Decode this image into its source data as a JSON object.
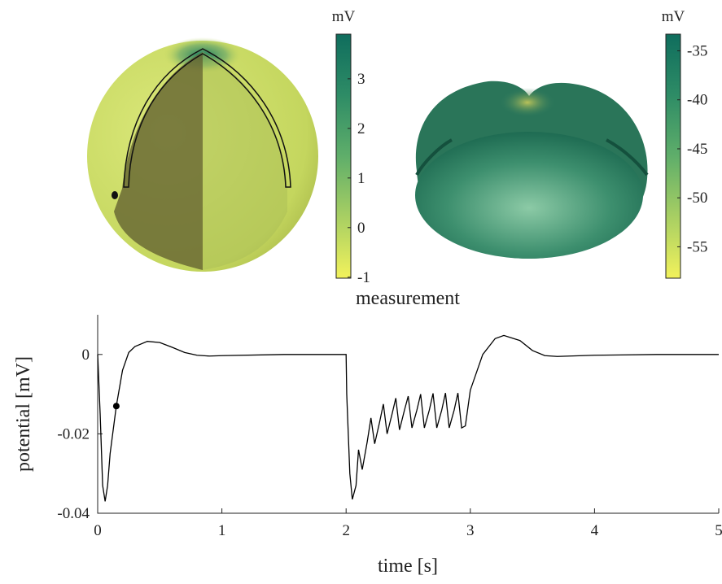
{
  "chart_data": [
    {
      "type": "colorbar",
      "unit": "mV",
      "ylim": [
        -1.02,
        3.9
      ],
      "yticks": [
        -1,
        0,
        1,
        2,
        3
      ],
      "colors": [
        "#f2f25c",
        "#a8cf63",
        "#5fae6a",
        "#2e8c66",
        "#0f6d5d"
      ]
    },
    {
      "type": "colorbar",
      "unit": "mV",
      "ylim": [
        -58.2,
        -33.3
      ],
      "yticks": [
        -55,
        -50,
        -45,
        -40,
        -35
      ],
      "colors": [
        "#f2f25c",
        "#a8cf63",
        "#5fae6a",
        "#2e8c66",
        "#0f6d5d"
      ]
    },
    {
      "type": "line",
      "title": "measurement",
      "x_label": "time [s]",
      "y_label": "potential [mV]",
      "xlim": [
        0,
        5
      ],
      "ylim": [
        -0.04,
        0.01
      ],
      "xticks": [
        0,
        1,
        2,
        3,
        4,
        5
      ],
      "yticks": [
        -0.04,
        -0.02,
        0
      ],
      "x": [
        0,
        0.02,
        0.04,
        0.06,
        0.08,
        0.1,
        0.15,
        0.2,
        0.25,
        0.3,
        0.4,
        0.5,
        0.6,
        0.7,
        0.8,
        0.9,
        1.0,
        1.5,
        2.0,
        2.005,
        2.03,
        2.05,
        2.08,
        2.1,
        2.13,
        2.17,
        2.2,
        2.23,
        2.27,
        2.3,
        2.33,
        2.37,
        2.4,
        2.43,
        2.47,
        2.5,
        2.53,
        2.57,
        2.6,
        2.63,
        2.67,
        2.7,
        2.73,
        2.77,
        2.8,
        2.83,
        2.87,
        2.9,
        2.93,
        2.96,
        3.0,
        3.1,
        3.2,
        3.27,
        3.4,
        3.5,
        3.6,
        3.7,
        4.0,
        4.5,
        5.0
      ],
      "series": [
        {
          "color": "#000000",
          "values": [
            0,
            -0.015,
            -0.033,
            -0.037,
            -0.033,
            -0.025,
            -0.013,
            -0.004,
            0.0005,
            0.002,
            0.0033,
            0.003,
            0.0018,
            0.0005,
            -0.0002,
            -0.0004,
            -0.0003,
            0,
            0,
            -0.01,
            -0.03,
            -0.0365,
            -0.033,
            -0.024,
            -0.029,
            -0.022,
            -0.016,
            -0.0225,
            -0.017,
            -0.0125,
            -0.02,
            -0.015,
            -0.011,
            -0.019,
            -0.014,
            -0.0105,
            -0.0185,
            -0.014,
            -0.01,
            -0.0185,
            -0.014,
            -0.0098,
            -0.0185,
            -0.014,
            -0.0097,
            -0.0185,
            -0.014,
            -0.0097,
            -0.0185,
            -0.018,
            -0.009,
            0,
            0.004,
            0.0048,
            0.0035,
            0.001,
            -0.0003,
            -0.0005,
            -0.0002,
            0,
            0
          ]
        }
      ],
      "marker": {
        "x": 0.15,
        "y": -0.013,
        "color": "#000000"
      }
    }
  ]
}
